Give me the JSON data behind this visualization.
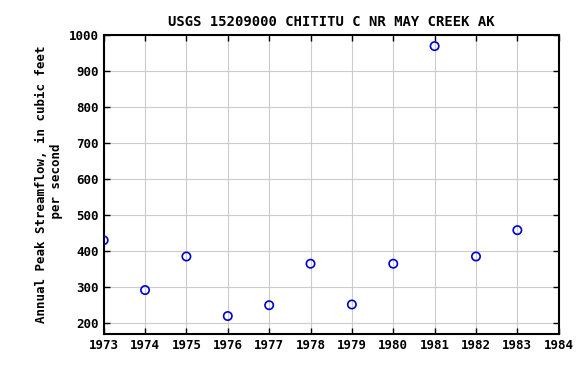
{
  "title": "USGS 15209000 CHITITU C NR MAY CREEK AK",
  "ylabel_line1": "Annual Peak Streamflow, in cubic feet",
  "ylabel_line2": " per second",
  "years": [
    1973,
    1974,
    1975,
    1976,
    1977,
    1978,
    1979,
    1980,
    1981,
    1982,
    1983
  ],
  "values": [
    430,
    292,
    385,
    220,
    250,
    365,
    252,
    365,
    968,
    385,
    458
  ],
  "xlim": [
    1973,
    1984
  ],
  "ylim": [
    170,
    1000
  ],
  "yticks": [
    200,
    300,
    400,
    500,
    600,
    700,
    800,
    900,
    1000
  ],
  "xticks": [
    1973,
    1974,
    1975,
    1976,
    1977,
    1978,
    1979,
    1980,
    1981,
    1982,
    1983,
    1984
  ],
  "marker_color": "#0000cc",
  "marker_size": 6,
  "grid_color": "#cccccc",
  "bg_color": "#ffffff",
  "title_fontsize": 10,
  "label_fontsize": 9,
  "tick_fontsize": 9
}
